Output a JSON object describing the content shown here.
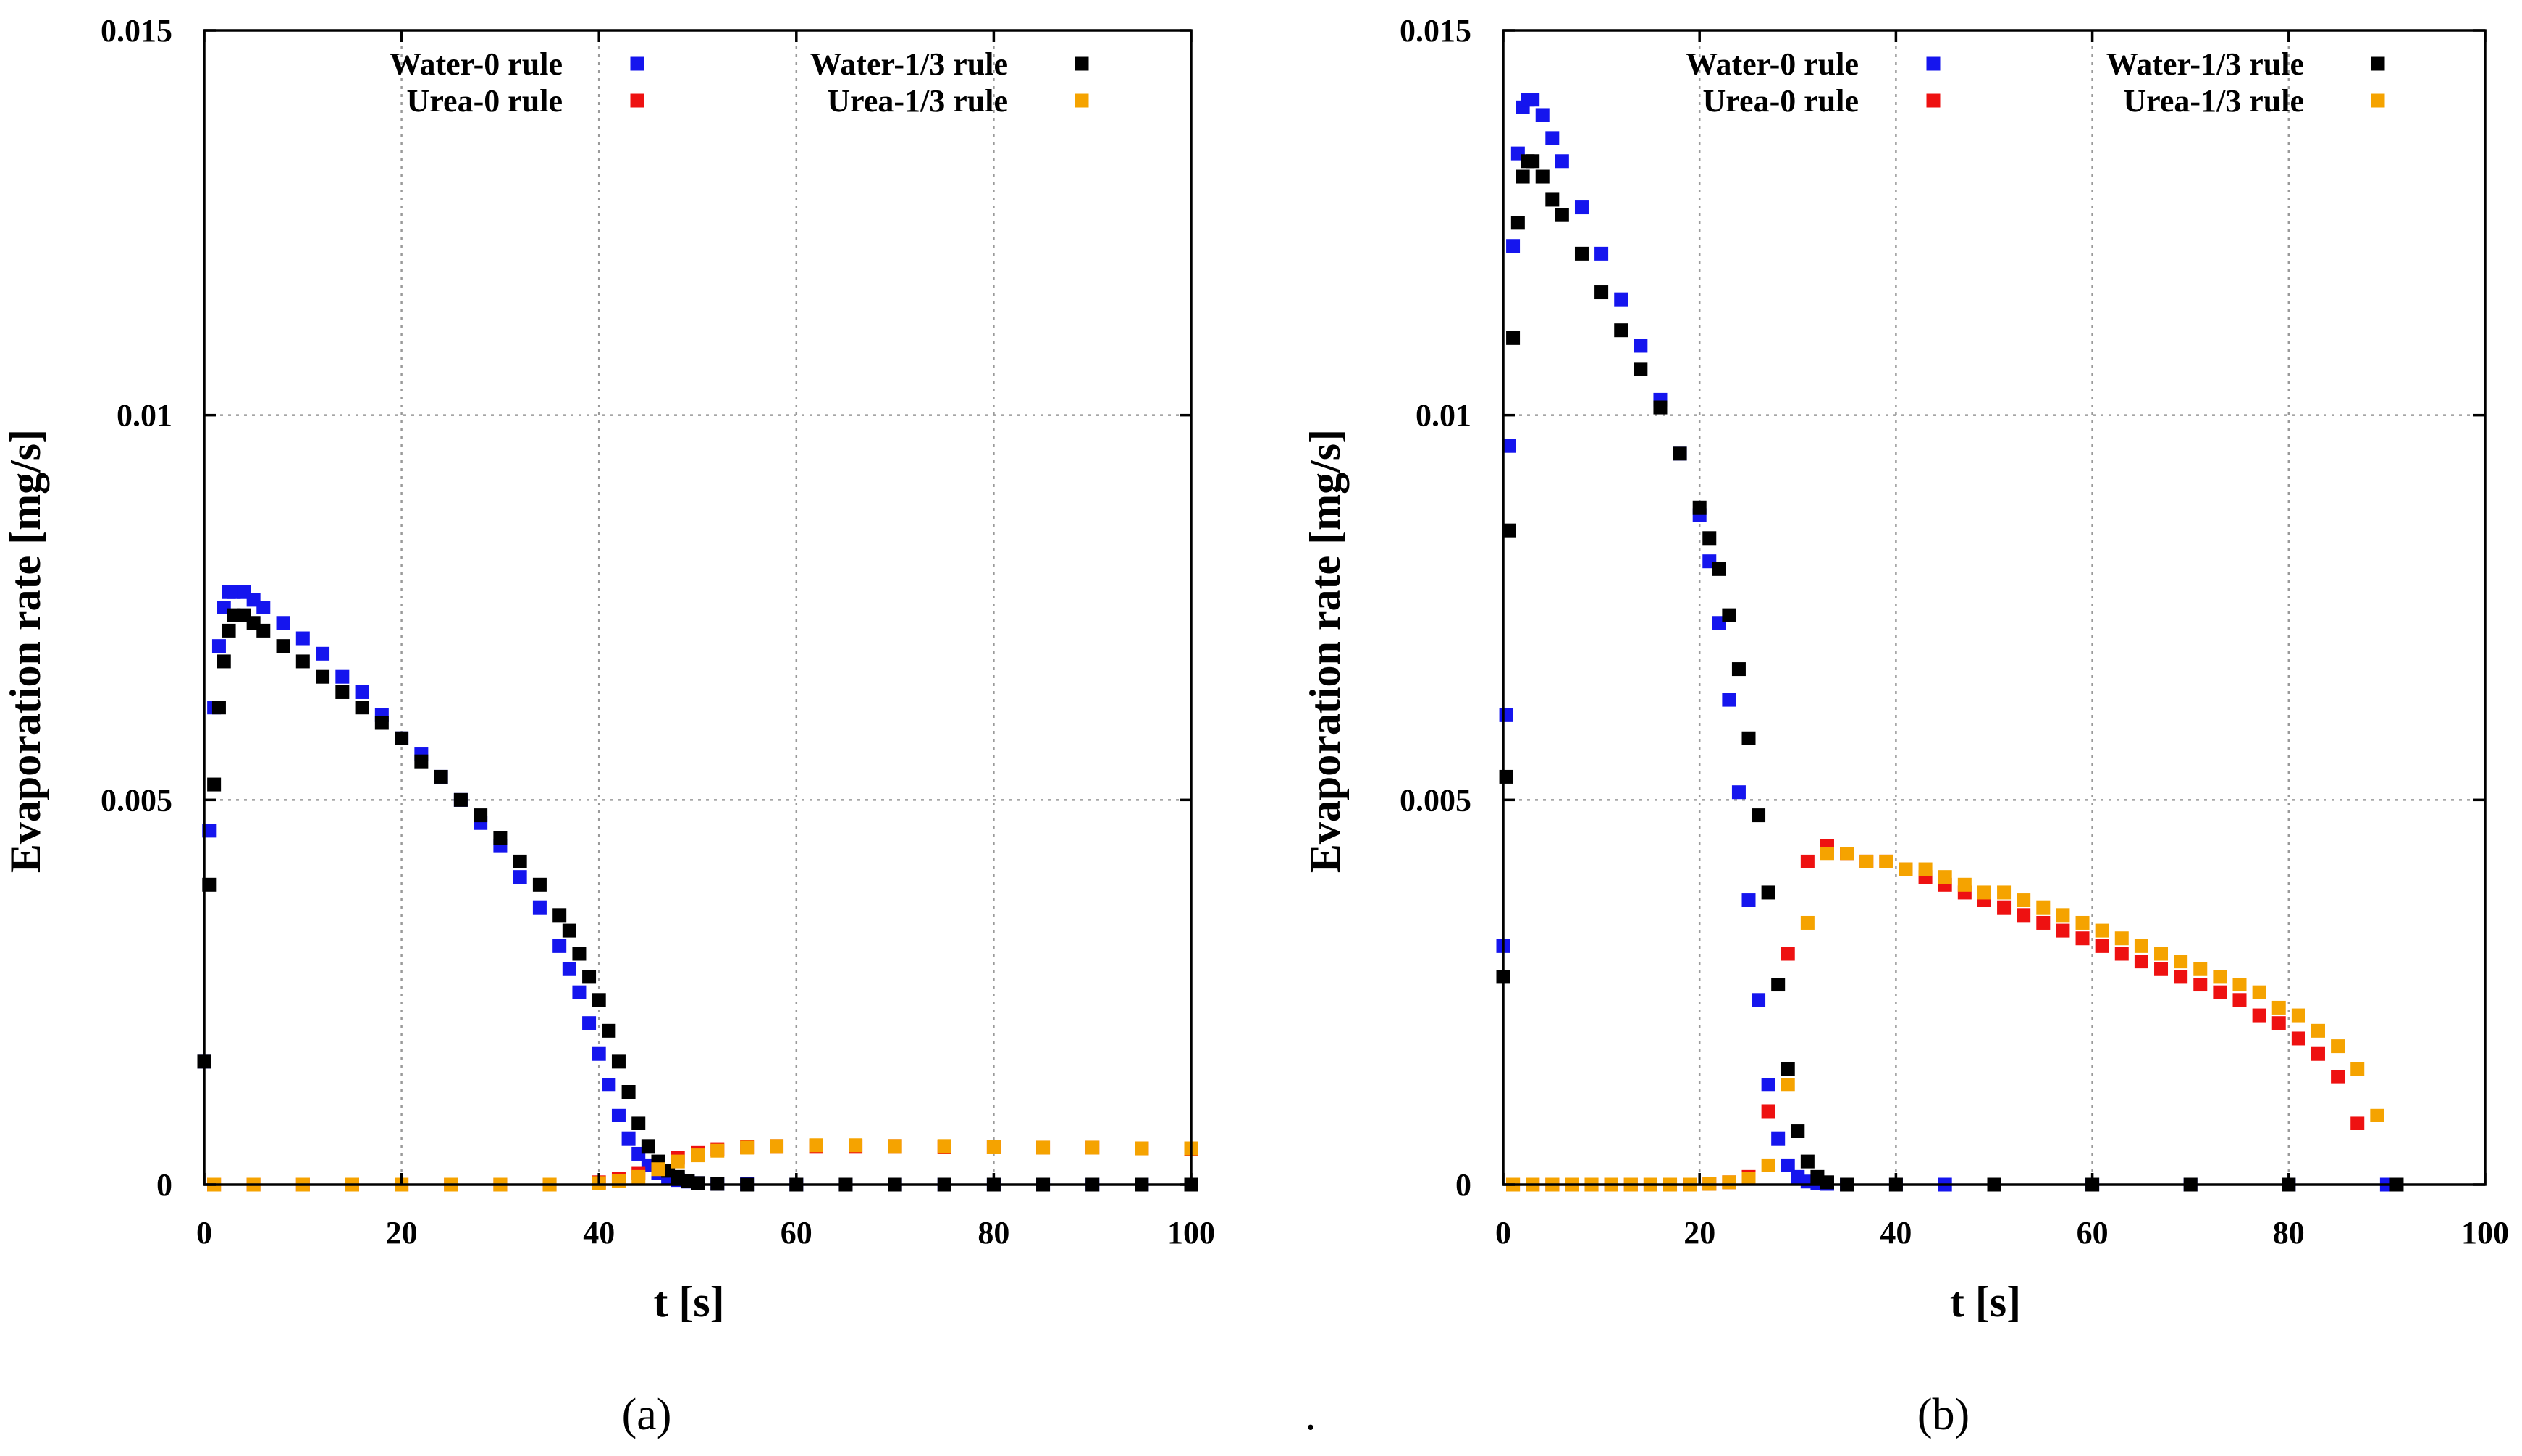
{
  "figure_caption_separator": ".",
  "chart_data": [
    {
      "type": "scatter",
      "panel_label": "(a)",
      "xlabel": "t [s]",
      "ylabel": "Evaporation rate [mg/s]",
      "xlim": [
        0,
        100
      ],
      "ylim": [
        0,
        0.015
      ],
      "xticks": [
        0,
        20,
        40,
        60,
        80,
        100
      ],
      "xtick_labels": [
        "0",
        "20",
        "40",
        "60",
        "80",
        "100"
      ],
      "yticks": [
        0,
        0.005,
        0.01,
        0.015
      ],
      "ytick_labels": [
        "0",
        "0.005",
        "0.01",
        "0.015"
      ],
      "grid": true,
      "legend_position": "top",
      "series": [
        {
          "name": "Water-0 rule",
          "color": "#1515ee",
          "x": [
            0,
            0.5,
            1,
            1.5,
            2,
            2.5,
            3,
            4,
            5,
            6,
            8,
            10,
            12,
            14,
            16,
            18,
            20,
            22,
            24,
            26,
            28,
            30,
            32,
            34,
            36,
            37,
            38,
            39,
            40,
            41,
            42,
            43,
            44,
            45,
            46,
            47,
            48,
            49,
            50,
            52,
            55,
            60,
            65,
            70,
            75,
            80,
            85,
            90,
            95,
            100
          ],
          "y": [
            0.0016,
            0.0046,
            0.0062,
            0.007,
            0.0075,
            0.0077,
            0.0077,
            0.0077,
            0.0076,
            0.0075,
            0.0073,
            0.0071,
            0.0069,
            0.0066,
            0.0064,
            0.0061,
            0.0058,
            0.0056,
            0.0053,
            0.005,
            0.0047,
            0.0044,
            0.004,
            0.0036,
            0.0031,
            0.0028,
            0.0025,
            0.0021,
            0.0017,
            0.0013,
            0.0009,
            0.0006,
            0.0004,
            0.00025,
            0.00015,
            0.0001,
            6e-05,
            4e-05,
            2e-05,
            1e-05,
            5e-06,
            0,
            0,
            0,
            0,
            0,
            0,
            0,
            0,
            0
          ]
        },
        {
          "name": "Urea-0 rule",
          "color": "#ee1111",
          "x": [
            1,
            5,
            10,
            15,
            20,
            25,
            30,
            35,
            40,
            42,
            44,
            46,
            48,
            50,
            52,
            55,
            58,
            62,
            66,
            70,
            75,
            80,
            85,
            90,
            95,
            100
          ],
          "y": [
            0,
            0,
            0,
            0,
            0,
            0,
            0,
            0,
            3e-05,
            8e-05,
            0.00015,
            0.00025,
            0.00035,
            0.00042,
            0.00046,
            0.00049,
            0.0005,
            0.0005,
            0.0005,
            0.0005,
            0.00049,
            0.00049,
            0.00048,
            0.00048,
            0.00047,
            0.00046
          ]
        },
        {
          "name": "Water-1/3 rule",
          "color": "#000000",
          "x": [
            0,
            0.5,
            1,
            1.5,
            2,
            2.5,
            3,
            4,
            5,
            6,
            8,
            10,
            12,
            14,
            16,
            18,
            20,
            22,
            24,
            26,
            28,
            30,
            32,
            34,
            36,
            37,
            38,
            39,
            40,
            41,
            42,
            43,
            44,
            45,
            46,
            47,
            48,
            49,
            50,
            52,
            55,
            60,
            65,
            70,
            75,
            80,
            85,
            90,
            95,
            100
          ],
          "y": [
            0.0016,
            0.0039,
            0.0052,
            0.0062,
            0.0068,
            0.0072,
            0.0074,
            0.0074,
            0.0073,
            0.0072,
            0.007,
            0.0068,
            0.0066,
            0.0064,
            0.0062,
            0.006,
            0.0058,
            0.0055,
            0.0053,
            0.005,
            0.0048,
            0.0045,
            0.0042,
            0.0039,
            0.0035,
            0.0033,
            0.003,
            0.0027,
            0.0024,
            0.002,
            0.0016,
            0.0012,
            0.0008,
            0.0005,
            0.0003,
            0.00018,
            0.0001,
            5e-05,
            2e-05,
            1e-05,
            0,
            0,
            0,
            0,
            0,
            0,
            0,
            0,
            0,
            0
          ]
        },
        {
          "name": "Urea-1/3 rule",
          "color": "#f5a300",
          "x": [
            1,
            5,
            10,
            15,
            20,
            25,
            30,
            35,
            40,
            42,
            44,
            46,
            48,
            50,
            52,
            55,
            58,
            62,
            66,
            70,
            75,
            80,
            85,
            90,
            95,
            100
          ],
          "y": [
            0,
            0,
            0,
            0,
            0,
            0,
            0,
            0,
            2e-05,
            5e-05,
            0.0001,
            0.0002,
            0.0003,
            0.00038,
            0.00044,
            0.00048,
            0.0005,
            0.00051,
            0.00051,
            0.0005,
            0.0005,
            0.00049,
            0.00048,
            0.00048,
            0.00047,
            0.00047
          ]
        }
      ]
    },
    {
      "type": "scatter",
      "panel_label": "(b)",
      "xlabel": "t [s]",
      "ylabel": "Evaporation rate [mg/s]",
      "xlim": [
        0,
        100
      ],
      "ylim": [
        0,
        0.015
      ],
      "xticks": [
        0,
        20,
        40,
        60,
        80,
        100
      ],
      "xtick_labels": [
        "0",
        "20",
        "40",
        "60",
        "80",
        "100"
      ],
      "yticks": [
        0,
        0.005,
        0.01,
        0.015
      ],
      "ytick_labels": [
        "0",
        "0.005",
        "0.01",
        "0.015"
      ],
      "grid": true,
      "legend_position": "top",
      "series": [
        {
          "name": "Water-0 rule",
          "color": "#1515ee",
          "x": [
            0,
            0.3,
            0.6,
            1,
            1.5,
            2,
            2.5,
            3,
            4,
            5,
            6,
            8,
            10,
            12,
            14,
            16,
            18,
            20,
            21,
            22,
            23,
            24,
            25,
            26,
            27,
            28,
            29,
            30,
            31,
            32,
            33,
            35,
            40,
            45,
            50,
            60,
            70,
            80,
            90
          ],
          "y": [
            0.0031,
            0.0061,
            0.0096,
            0.0122,
            0.0134,
            0.014,
            0.0141,
            0.0141,
            0.0139,
            0.0136,
            0.0133,
            0.0127,
            0.0121,
            0.0115,
            0.0109,
            0.0102,
            0.0095,
            0.0087,
            0.0081,
            0.0073,
            0.0063,
            0.0051,
            0.0037,
            0.0024,
            0.0013,
            0.0006,
            0.00025,
            0.0001,
            4e-05,
            2e-05,
            1e-05,
            0,
            0,
            0,
            0,
            0,
            0,
            0,
            0
          ]
        },
        {
          "name": "Urea-0 rule",
          "color": "#ee1111",
          "x": [
            1,
            3,
            5,
            7,
            9,
            11,
            13,
            15,
            17,
            19,
            21,
            23,
            25,
            27,
            29,
            31,
            33,
            35,
            37,
            39,
            41,
            43,
            45,
            47,
            49,
            51,
            53,
            55,
            57,
            59,
            61,
            63,
            65,
            67,
            69,
            71,
            73,
            75,
            77,
            79,
            81,
            83,
            85,
            87
          ],
          "y": [
            0,
            0,
            0,
            0,
            0,
            0,
            0,
            0,
            0,
            0,
            1e-05,
            3e-05,
            0.0001,
            0.00095,
            0.003,
            0.0042,
            0.0044,
            0.0043,
            0.0042,
            0.0042,
            0.0041,
            0.004,
            0.0039,
            0.0038,
            0.0037,
            0.0036,
            0.0035,
            0.0034,
            0.0033,
            0.0032,
            0.0031,
            0.003,
            0.0029,
            0.0028,
            0.0027,
            0.0026,
            0.0025,
            0.0024,
            0.0022,
            0.0021,
            0.0019,
            0.0017,
            0.0014,
            0.0008
          ]
        },
        {
          "name": "Water-1/3 rule",
          "color": "#000000",
          "x": [
            0,
            0.3,
            0.6,
            1,
            1.5,
            2,
            2.5,
            3,
            4,
            5,
            6,
            8,
            10,
            12,
            14,
            16,
            18,
            20,
            21,
            22,
            23,
            24,
            25,
            26,
            27,
            28,
            29,
            30,
            31,
            32,
            33,
            35,
            40,
            50,
            60,
            70,
            80,
            91
          ],
          "y": [
            0.0027,
            0.0053,
            0.0085,
            0.011,
            0.0125,
            0.0131,
            0.0133,
            0.0133,
            0.0131,
            0.0128,
            0.0126,
            0.0121,
            0.0116,
            0.0111,
            0.0106,
            0.0101,
            0.0095,
            0.0088,
            0.0084,
            0.008,
            0.0074,
            0.0067,
            0.0058,
            0.0048,
            0.0038,
            0.0026,
            0.0015,
            0.0007,
            0.0003,
            0.0001,
            3e-05,
            0,
            0,
            0,
            0,
            0,
            0,
            0
          ]
        },
        {
          "name": "Urea-1/3 rule",
          "color": "#f5a300",
          "x": [
            1,
            3,
            5,
            7,
            9,
            11,
            13,
            15,
            17,
            19,
            21,
            23,
            25,
            27,
            29,
            31,
            33,
            35,
            37,
            39,
            41,
            43,
            45,
            47,
            49,
            51,
            53,
            55,
            57,
            59,
            61,
            63,
            65,
            67,
            69,
            71,
            73,
            75,
            77,
            79,
            81,
            83,
            85,
            87,
            89
          ],
          "y": [
            0,
            0,
            0,
            0,
            0,
            0,
            0,
            0,
            0,
            0,
            1e-05,
            3e-05,
            8e-05,
            0.00025,
            0.0013,
            0.0034,
            0.0043,
            0.0043,
            0.0042,
            0.0042,
            0.0041,
            0.0041,
            0.004,
            0.0039,
            0.0038,
            0.0038,
            0.0037,
            0.0036,
            0.0035,
            0.0034,
            0.0033,
            0.0032,
            0.0031,
            0.003,
            0.0029,
            0.0028,
            0.0027,
            0.0026,
            0.0025,
            0.0023,
            0.0022,
            0.002,
            0.0018,
            0.0015,
            0.0009
          ]
        }
      ]
    }
  ]
}
